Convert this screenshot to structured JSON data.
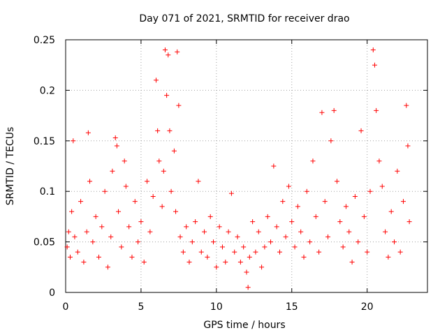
{
  "chart_data": {
    "type": "scatter",
    "title": "Day 071 of 2021, SRMTID for receiver drao",
    "xlabel": "GPS time / hours",
    "ylabel": "SRMTID / TECUs",
    "xlim": [
      0,
      24
    ],
    "ylim": [
      0,
      0.25
    ],
    "x_ticks": [
      0,
      5,
      10,
      15,
      20
    ],
    "y_ticks": [
      0,
      0.05,
      0.1,
      0.15,
      0.2,
      0.25
    ],
    "x_tick_labels": [
      "0",
      "5",
      "10",
      "15",
      "20"
    ],
    "y_tick_labels": [
      "0",
      "0.05",
      "0.1",
      "0.15",
      "0.2",
      "0.25"
    ],
    "grid": true,
    "marker": "+",
    "marker_color": "#ff0000",
    "series": [
      {
        "name": "SRMTID",
        "points": [
          [
            0.1,
            0.045
          ],
          [
            0.2,
            0.06
          ],
          [
            0.3,
            0.035
          ],
          [
            0.4,
            0.08
          ],
          [
            0.5,
            0.15
          ],
          [
            0.6,
            0.055
          ],
          [
            0.8,
            0.04
          ],
          [
            1.0,
            0.09
          ],
          [
            1.2,
            0.03
          ],
          [
            1.4,
            0.06
          ],
          [
            1.5,
            0.158
          ],
          [
            1.6,
            0.11
          ],
          [
            1.8,
            0.05
          ],
          [
            2.0,
            0.075
          ],
          [
            2.2,
            0.035
          ],
          [
            2.4,
            0.065
          ],
          [
            2.6,
            0.1
          ],
          [
            2.8,
            0.025
          ],
          [
            3.0,
            0.055
          ],
          [
            3.1,
            0.12
          ],
          [
            3.3,
            0.153
          ],
          [
            3.4,
            0.145
          ],
          [
            3.5,
            0.08
          ],
          [
            3.7,
            0.045
          ],
          [
            3.9,
            0.13
          ],
          [
            4.0,
            0.105
          ],
          [
            4.2,
            0.065
          ],
          [
            4.4,
            0.035
          ],
          [
            4.6,
            0.09
          ],
          [
            4.8,
            0.05
          ],
          [
            5.0,
            0.07
          ],
          [
            5.2,
            0.03
          ],
          [
            5.4,
            0.11
          ],
          [
            5.6,
            0.06
          ],
          [
            5.8,
            0.095
          ],
          [
            6.0,
            0.21
          ],
          [
            6.1,
            0.16
          ],
          [
            6.2,
            0.13
          ],
          [
            6.4,
            0.085
          ],
          [
            6.5,
            0.12
          ],
          [
            6.6,
            0.24
          ],
          [
            6.7,
            0.195
          ],
          [
            6.8,
            0.235
          ],
          [
            6.9,
            0.16
          ],
          [
            7.0,
            0.1
          ],
          [
            7.2,
            0.14
          ],
          [
            7.3,
            0.08
          ],
          [
            7.4,
            0.238
          ],
          [
            7.5,
            0.185
          ],
          [
            7.6,
            0.055
          ],
          [
            7.8,
            0.04
          ],
          [
            8.0,
            0.065
          ],
          [
            8.2,
            0.03
          ],
          [
            8.4,
            0.05
          ],
          [
            8.6,
            0.07
          ],
          [
            8.8,
            0.11
          ],
          [
            9.0,
            0.04
          ],
          [
            9.2,
            0.06
          ],
          [
            9.4,
            0.035
          ],
          [
            9.6,
            0.075
          ],
          [
            9.8,
            0.05
          ],
          [
            10.0,
            0.025
          ],
          [
            10.2,
            0.065
          ],
          [
            10.4,
            0.045
          ],
          [
            10.6,
            0.03
          ],
          [
            10.8,
            0.06
          ],
          [
            11.0,
            0.098
          ],
          [
            11.2,
            0.04
          ],
          [
            11.4,
            0.055
          ],
          [
            11.6,
            0.03
          ],
          [
            11.8,
            0.045
          ],
          [
            12.0,
            0.02
          ],
          [
            12.1,
            0.005
          ],
          [
            12.2,
            0.035
          ],
          [
            12.4,
            0.07
          ],
          [
            12.6,
            0.04
          ],
          [
            12.8,
            0.06
          ],
          [
            13.0,
            0.025
          ],
          [
            13.2,
            0.045
          ],
          [
            13.4,
            0.075
          ],
          [
            13.6,
            0.05
          ],
          [
            13.8,
            0.125
          ],
          [
            14.0,
            0.065
          ],
          [
            14.2,
            0.04
          ],
          [
            14.4,
            0.09
          ],
          [
            14.6,
            0.055
          ],
          [
            14.8,
            0.105
          ],
          [
            15.0,
            0.07
          ],
          [
            15.2,
            0.045
          ],
          [
            15.4,
            0.085
          ],
          [
            15.6,
            0.06
          ],
          [
            15.8,
            0.035
          ],
          [
            16.0,
            0.1
          ],
          [
            16.2,
            0.05
          ],
          [
            16.4,
            0.13
          ],
          [
            16.6,
            0.075
          ],
          [
            16.8,
            0.04
          ],
          [
            17.0,
            0.178
          ],
          [
            17.2,
            0.09
          ],
          [
            17.4,
            0.055
          ],
          [
            17.6,
            0.15
          ],
          [
            17.8,
            0.18
          ],
          [
            18.0,
            0.11
          ],
          [
            18.2,
            0.07
          ],
          [
            18.4,
            0.045
          ],
          [
            18.6,
            0.085
          ],
          [
            18.8,
            0.06
          ],
          [
            19.0,
            0.03
          ],
          [
            19.2,
            0.095
          ],
          [
            19.4,
            0.05
          ],
          [
            19.6,
            0.16
          ],
          [
            19.8,
            0.075
          ],
          [
            20.0,
            0.04
          ],
          [
            20.2,
            0.1
          ],
          [
            20.4,
            0.24
          ],
          [
            20.5,
            0.225
          ],
          [
            20.6,
            0.18
          ],
          [
            20.8,
            0.13
          ],
          [
            21.0,
            0.105
          ],
          [
            21.2,
            0.06
          ],
          [
            21.4,
            0.035
          ],
          [
            21.6,
            0.08
          ],
          [
            21.8,
            0.05
          ],
          [
            22.0,
            0.12
          ],
          [
            22.2,
            0.04
          ],
          [
            22.4,
            0.09
          ],
          [
            22.6,
            0.185
          ],
          [
            22.7,
            0.145
          ],
          [
            22.8,
            0.07
          ]
        ]
      }
    ]
  }
}
